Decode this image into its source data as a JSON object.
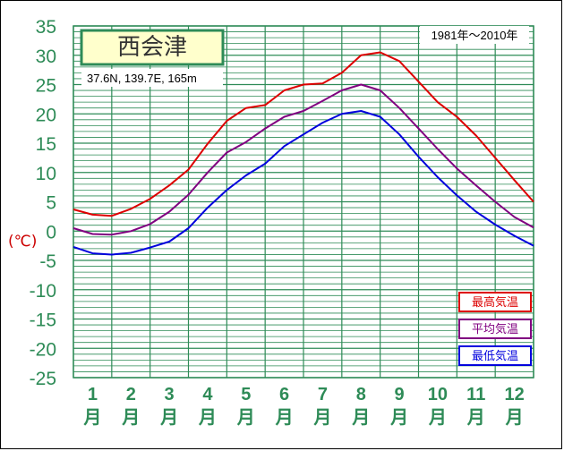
{
  "station_name": "西会津",
  "location_text": "37.6N,  139.7E,  165m",
  "period_text": "1981年〜2010年",
  "unit_text": "(℃)",
  "chart_data": {
    "type": "line",
    "title": "西会津",
    "ylim": [
      -25,
      35
    ],
    "y_ticks": [
      35,
      30,
      25,
      20,
      15,
      10,
      5,
      0,
      -5,
      -10,
      -15,
      -20,
      -25
    ],
    "categories": [
      "1",
      "2",
      "3",
      "4",
      "5",
      "6",
      "7",
      "8",
      "9",
      "10",
      "11",
      "12"
    ],
    "x_suffix": "月",
    "ylabel": "(℃)",
    "grid": true,
    "legend_position": "bottom-right",
    "x": [
      0,
      0.5,
      1,
      1.5,
      2,
      2.5,
      3,
      3.5,
      4,
      4.5,
      5,
      5.5,
      6,
      6.5,
      7,
      7.5,
      8,
      8.5,
      9,
      9.5,
      10,
      10.5,
      11,
      11.5,
      12
    ],
    "series": [
      {
        "name": "最高気温",
        "color": "#dd0000",
        "values": [
          3.7,
          2.8,
          2.6,
          3.8,
          5.5,
          7.8,
          10.5,
          14.9,
          18.8,
          21.0,
          21.5,
          24.0,
          25.0,
          25.2,
          27.0,
          30.0,
          30.5,
          29.0,
          25.5,
          22.0,
          19.5,
          16.3,
          12.5,
          8.7,
          5.0
        ]
      },
      {
        "name": "平均気温",
        "color": "#800080",
        "values": [
          0.5,
          -0.5,
          -0.6,
          0.0,
          1.2,
          3.3,
          6.2,
          10.0,
          13.4,
          15.2,
          17.5,
          19.5,
          20.5,
          22.2,
          24.0,
          25.0,
          24.0,
          21.0,
          17.5,
          14.0,
          10.7,
          7.8,
          5.0,
          2.4,
          0.6
        ]
      },
      {
        "name": "最低気温",
        "color": "#0000dd",
        "values": [
          -2.7,
          -3.8,
          -4.0,
          -3.7,
          -2.8,
          -1.8,
          0.5,
          4.0,
          7.0,
          9.5,
          11.5,
          14.5,
          16.5,
          18.5,
          20.0,
          20.5,
          19.5,
          16.5,
          12.7,
          9.2,
          6.1,
          3.3,
          1.1,
          -0.8,
          -2.5
        ]
      }
    ]
  }
}
